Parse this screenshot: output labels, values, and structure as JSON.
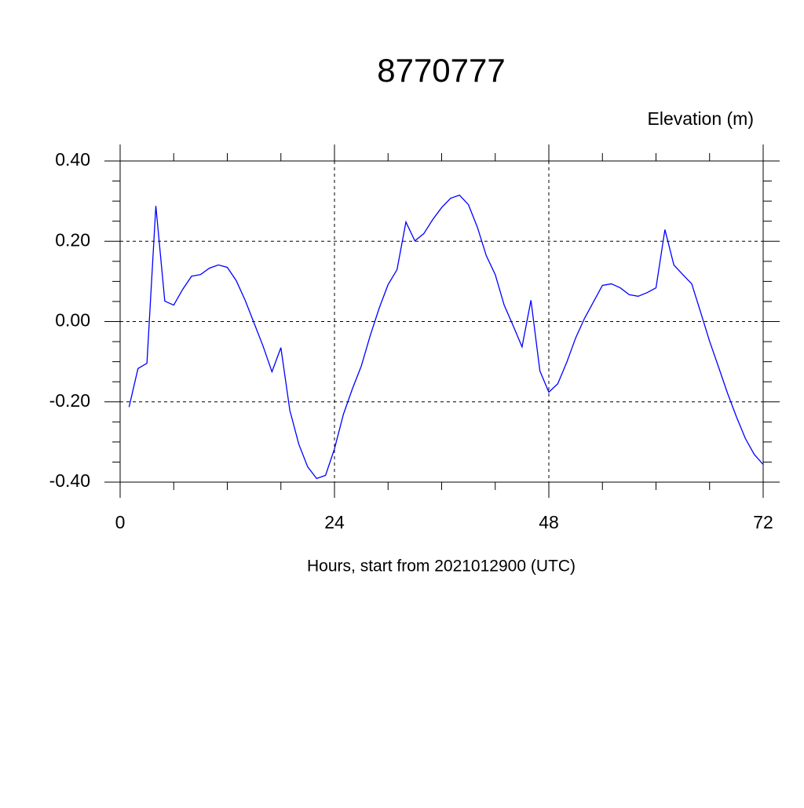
{
  "chart_data": {
    "type": "line",
    "title": "8770777",
    "y_label": "Elevation (m)",
    "x_label": "Hours, start from 2021012900 (UTC)",
    "x": [
      1,
      2,
      3,
      4,
      5,
      6,
      7,
      8,
      9,
      10,
      11,
      12,
      13,
      14,
      15,
      16,
      17,
      18,
      19,
      20,
      21,
      22,
      23,
      24,
      25,
      26,
      27,
      28,
      29,
      30,
      31,
      32,
      33,
      34,
      35,
      36,
      37,
      38,
      39,
      40,
      41,
      42,
      43,
      44,
      45,
      46,
      47,
      48,
      49,
      50,
      51,
      52,
      53,
      54,
      55,
      56,
      57,
      58,
      59,
      60,
      61,
      62,
      63,
      64,
      65,
      66,
      67,
      68,
      69,
      70,
      71,
      72
    ],
    "series": [
      {
        "color": "#0000ff",
        "values": [
          -0.213,
          -0.117,
          -0.104,
          0.288,
          0.051,
          0.041,
          0.08,
          0.113,
          0.117,
          0.133,
          0.141,
          0.135,
          0.102,
          0.053,
          -0.004,
          -0.061,
          -0.125,
          -0.065,
          -0.221,
          -0.305,
          -0.362,
          -0.391,
          -0.383,
          -0.317,
          -0.231,
          -0.168,
          -0.111,
          -0.035,
          0.033,
          0.092,
          0.129,
          0.248,
          0.201,
          0.219,
          0.254,
          0.284,
          0.307,
          0.315,
          0.291,
          0.235,
          0.164,
          0.117,
          0.041,
          -0.01,
          -0.063,
          0.053,
          -0.123,
          -0.176,
          -0.155,
          -0.102,
          -0.041,
          0.008,
          0.049,
          0.09,
          0.094,
          0.084,
          0.067,
          0.063,
          0.072,
          0.084,
          0.229,
          0.141,
          0.117,
          0.094,
          0.023,
          -0.049,
          -0.113,
          -0.178,
          -0.237,
          -0.291,
          -0.331,
          -0.356
        ]
      }
    ],
    "xlim": [
      0,
      72
    ],
    "xticks": [
      0,
      24,
      48,
      72
    ],
    "xminorticks": [
      6,
      12,
      18,
      30,
      36,
      42,
      54,
      60,
      66
    ],
    "ylim": [
      -0.4,
      0.4
    ],
    "yticks": [
      {
        "value": -0.4,
        "label": "-0.40"
      },
      {
        "value": -0.2,
        "label": "-0.20"
      },
      {
        "value": 0,
        "label": "0.00"
      },
      {
        "value": 0.2,
        "label": "0.20"
      },
      {
        "value": 0.4,
        "label": "0.40"
      }
    ],
    "yminorticks": [
      -0.35,
      -0.3,
      -0.25,
      -0.15,
      -0.1,
      -0.05,
      0.05,
      0.1,
      0.15,
      0.25,
      0.3,
      0.35
    ],
    "grid": true
  }
}
